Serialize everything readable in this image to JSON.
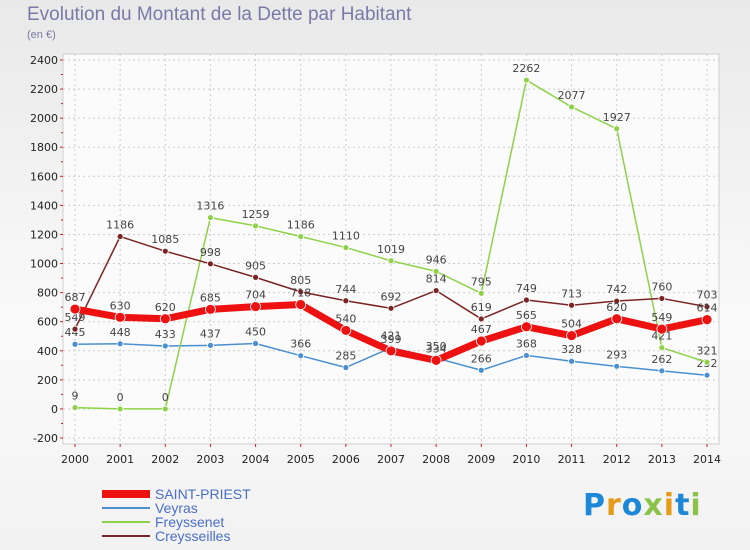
{
  "header": {
    "title": "Evolution du Montant de la Dette par Habitant",
    "subtitle": "(en €)"
  },
  "brand": {
    "text": "Proxiti",
    "colors": [
      "#1e88d8",
      "#e69b1a",
      "#1e88d8",
      "#8bc34a",
      "#e69b1a",
      "#1e88d8",
      "#8bc34a"
    ]
  },
  "chart_data": {
    "type": "line",
    "x": [
      "2000",
      "2001",
      "2002",
      "2003",
      "2004",
      "2005",
      "2006",
      "2007",
      "2008",
      "2009",
      "2010",
      "2011",
      "2012",
      "2013",
      "2014"
    ],
    "ylim": [
      -200,
      2400
    ],
    "yticks": [
      -200,
      0,
      200,
      400,
      600,
      800,
      1000,
      1200,
      1400,
      1600,
      1800,
      2000,
      2200,
      2400
    ],
    "grid": true,
    "legend_position": "bottom-left",
    "series": [
      {
        "name": "Veyras",
        "color": "#4a8fd0",
        "width": 1.5,
        "values": [
          445,
          448,
          433,
          437,
          450,
          366,
          285,
          421,
          350,
          266,
          368,
          328,
          293,
          262,
          232
        ],
        "labels": [
          "445",
          "448",
          "433",
          "437",
          "450",
          "366",
          "285",
          "421",
          "350",
          "266",
          "368",
          "328",
          "293",
          "262",
          "232"
        ]
      },
      {
        "name": "Freyssenet",
        "color": "#8ed24a",
        "width": 1.5,
        "values": [
          9,
          0,
          0,
          1316,
          1259,
          1186,
          1110,
          1019,
          946,
          795,
          2262,
          2077,
          1927,
          421,
          321
        ],
        "labels": [
          "9",
          "0",
          "0",
          "1316",
          "1259",
          "1186",
          "1110",
          "1019",
          "946",
          "795",
          "2262",
          "2077",
          "1927",
          "421",
          "321"
        ]
      },
      {
        "name": "Creysseilles",
        "color": "#7a2323",
        "width": 1.5,
        "values": [
          549,
          1186,
          1085,
          998,
          905,
          805,
          744,
          692,
          814,
          619,
          749,
          713,
          742,
          760,
          703
        ],
        "labels": [
          "549",
          "1186",
          "1085",
          "998",
          "905",
          "805",
          "744",
          "692",
          "814",
          "619",
          "749",
          "713",
          "742",
          "760",
          "703"
        ]
      },
      {
        "name": "SAINT-PRIEST",
        "color": "#ee1111",
        "width": 7,
        "values": [
          687,
          630,
          620,
          685,
          704,
          718,
          540,
          399,
          334,
          467,
          565,
          504,
          620,
          549,
          614
        ],
        "labels": [
          "687",
          "630",
          "620",
          "685",
          "704",
          "718",
          "540",
          "399",
          "334",
          "467",
          "565",
          "504",
          "620",
          "549",
          "614"
        ]
      }
    ],
    "legend": [
      {
        "name": "SAINT-PRIEST",
        "color": "#ee1111"
      },
      {
        "name": "Veyras",
        "color": "#4a8fd0"
      },
      {
        "name": "Freyssenet",
        "color": "#8ed24a"
      },
      {
        "name": "Creysseilles",
        "color": "#7a2323"
      }
    ]
  }
}
